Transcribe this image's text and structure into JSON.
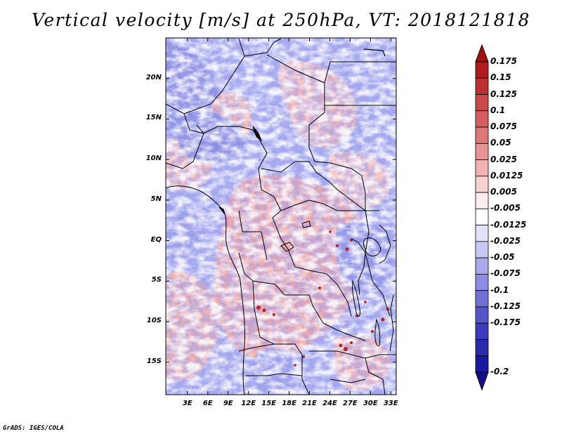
{
  "title": "Vertical velocity [m/s] at 250hPa, VT: 2018121818",
  "credit": "GrADS: IGES/COLA",
  "map": {
    "variable": "Vertical velocity",
    "units": "m/s",
    "level": "250hPa",
    "valid_time": "2018121818",
    "lat_range": [
      -19,
      25
    ],
    "lon_range": [
      -0.2,
      33.8
    ]
  },
  "lat_ticks": [
    {
      "label": "20N",
      "value": 20
    },
    {
      "label": "15N",
      "value": 15
    },
    {
      "label": "10N",
      "value": 10
    },
    {
      "label": "5N",
      "value": 5
    },
    {
      "label": "EQ",
      "value": 0
    },
    {
      "label": "5S",
      "value": -5
    },
    {
      "label": "10S",
      "value": -10
    },
    {
      "label": "15S",
      "value": -15
    }
  ],
  "lon_ticks": [
    {
      "label": "3E",
      "value": 3
    },
    {
      "label": "6E",
      "value": 6
    },
    {
      "label": "9E",
      "value": 9
    },
    {
      "label": "12E",
      "value": 12
    },
    {
      "label": "15E",
      "value": 15
    },
    {
      "label": "18E",
      "value": 18
    },
    {
      "label": "21E",
      "value": 21
    },
    {
      "label": "24E",
      "value": 24
    },
    {
      "label": "27E",
      "value": 27
    },
    {
      "label": "30E",
      "value": 30
    },
    {
      "label": "33E",
      "value": 33
    }
  ],
  "colorbar": {
    "labels": [
      "0.175",
      "0.15",
      "0.125",
      "0.1",
      "0.075",
      "0.05",
      "0.025",
      "0.0125",
      "0.005",
      "-0.005",
      "-0.0125",
      "-0.025",
      "-0.05",
      "-0.075",
      "-0.1",
      "-0.125",
      "-0.175",
      "-0.2"
    ],
    "colors": [
      "#b01c1c",
      "#bd3030",
      "#c94848",
      "#d45e5e",
      "#de7878",
      "#e89494",
      "#f2b2b2",
      "#f8d0d0",
      "#fcecec",
      "#ffffff",
      "#e2e2fb",
      "#c8c8f4",
      "#a8a8ec",
      "#8c8ce2",
      "#7070d6",
      "#5656ca",
      "#3c3cbc",
      "#2a2aac",
      "#1818a0"
    ],
    "top_color": "#a01010",
    "bottom_color": "#10108c"
  }
}
